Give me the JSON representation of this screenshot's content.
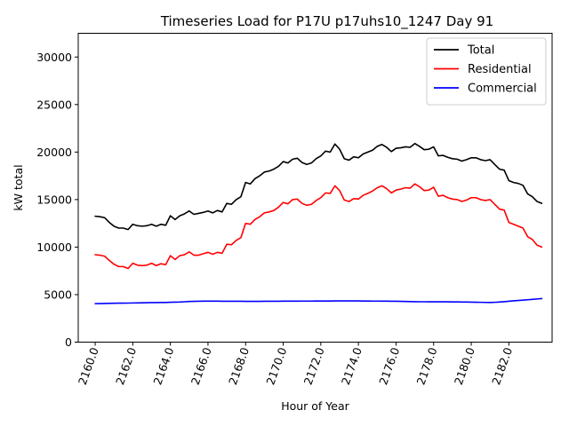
{
  "chart_data": {
    "type": "line",
    "title": "Timeseries Load for P17U p17uhs10_1247  Day 91",
    "xlabel": "Hour of Year",
    "ylabel": "kW total",
    "xlim": [
      2159.1,
      2184.3
    ],
    "ylim": [
      0,
      32500
    ],
    "xticks": [
      2160,
      2162,
      2164,
      2166,
      2168,
      2170,
      2172,
      2174,
      2176,
      2178,
      2180,
      2182
    ],
    "xtick_labels": [
      "2160.0",
      "2162.0",
      "2164.0",
      "2166.0",
      "2168.0",
      "2170.0",
      "2172.0",
      "2174.0",
      "2176.0",
      "2178.0",
      "2180.0",
      "2182.0"
    ],
    "yticks": [
      0,
      5000,
      10000,
      15000,
      20000,
      25000,
      30000
    ],
    "ytick_labels": [
      "0",
      "5000",
      "10000",
      "15000",
      "20000",
      "25000",
      "30000"
    ],
    "legend_position": "top-right",
    "x": [
      2160.0,
      2160.25,
      2160.5,
      2160.75,
      2161.0,
      2161.25,
      2161.5,
      2161.75,
      2162.0,
      2162.25,
      2162.5,
      2162.75,
      2163.0,
      2163.25,
      2163.5,
      2163.75,
      2164.0,
      2164.25,
      2164.5,
      2164.75,
      2165.0,
      2165.25,
      2165.5,
      2165.75,
      2166.0,
      2166.25,
      2166.5,
      2166.75,
      2167.0,
      2167.25,
      2167.5,
      2167.75,
      2168.0,
      2168.25,
      2168.5,
      2168.75,
      2169.0,
      2169.25,
      2169.5,
      2169.75,
      2170.0,
      2170.25,
      2170.5,
      2170.75,
      2171.0,
      2171.25,
      2171.5,
      2171.75,
      2172.0,
      2172.25,
      2172.5,
      2172.75,
      2173.0,
      2173.25,
      2173.5,
      2173.75,
      2174.0,
      2174.25,
      2174.5,
      2174.75,
      2175.0,
      2175.25,
      2175.5,
      2175.75,
      2176.0,
      2176.25,
      2176.5,
      2176.75,
      2177.0,
      2177.25,
      2177.5,
      2177.75,
      2178.0,
      2178.25,
      2178.5,
      2178.75,
      2179.0,
      2179.25,
      2179.5,
      2179.75,
      2180.0,
      2180.25,
      2180.5,
      2180.75,
      2181.0,
      2181.25,
      2181.5,
      2181.75,
      2182.0,
      2182.25,
      2182.5,
      2182.75,
      2183.0,
      2183.25,
      2183.5,
      2183.75
    ],
    "series": [
      {
        "name": "Total",
        "color": "#000000",
        "values": [
          13250,
          13200,
          13100,
          12600,
          12200,
          12000,
          12000,
          11850,
          12400,
          12250,
          12200,
          12250,
          12400,
          12200,
          12400,
          12300,
          13300,
          12900,
          13300,
          13500,
          13800,
          13450,
          13550,
          13650,
          13800,
          13600,
          13850,
          13700,
          14600,
          14500,
          15000,
          15300,
          16800,
          16650,
          17200,
          17500,
          17900,
          18000,
          18200,
          18500,
          19000,
          18850,
          19250,
          19350,
          18900,
          18700,
          18850,
          19300,
          19600,
          20100,
          20000,
          20850,
          20300,
          19300,
          19150,
          19500,
          19400,
          19800,
          20000,
          20200,
          20600,
          20800,
          20500,
          20050,
          20400,
          20450,
          20550,
          20500,
          20900,
          20600,
          20250,
          20300,
          20550,
          19600,
          19650,
          19450,
          19300,
          19250,
          19050,
          19200,
          19400,
          19400,
          19200,
          19100,
          19200,
          18700,
          18200,
          18100,
          17000,
          16800,
          16700,
          16500,
          15600,
          15300,
          14800,
          14600
        ]
      },
      {
        "name": "Residential",
        "color": "#ff0000",
        "values": [
          9200,
          9150,
          9050,
          8600,
          8200,
          7950,
          7950,
          7750,
          8300,
          8100,
          8050,
          8100,
          8300,
          8050,
          8250,
          8150,
          9100,
          8700,
          9100,
          9200,
          9500,
          9150,
          9150,
          9300,
          9450,
          9250,
          9450,
          9350,
          10300,
          10250,
          10700,
          11000,
          12500,
          12400,
          12900,
          13200,
          13600,
          13700,
          13850,
          14200,
          14700,
          14550,
          15000,
          15050,
          14600,
          14400,
          14500,
          14900,
          15200,
          15700,
          15650,
          16450,
          15950,
          14950,
          14800,
          15100,
          15050,
          15450,
          15650,
          15900,
          16250,
          16450,
          16150,
          15700,
          16000,
          16100,
          16250,
          16200,
          16650,
          16350,
          15950,
          16000,
          16300,
          15350,
          15450,
          15200,
          15050,
          15000,
          14800,
          14950,
          15200,
          15200,
          15000,
          14900,
          15000,
          14500,
          14000,
          13900,
          12600,
          12400,
          12200,
          12000,
          11100,
          10800,
          10200,
          10000
        ]
      },
      {
        "name": "Commercial",
        "color": "#0000ff",
        "values": [
          4050,
          4060,
          4070,
          4080,
          4090,
          4100,
          4100,
          4110,
          4120,
          4130,
          4140,
          4150,
          4160,
          4160,
          4170,
          4170,
          4200,
          4210,
          4220,
          4250,
          4280,
          4290,
          4300,
          4310,
          4310,
          4310,
          4310,
          4300,
          4300,
          4300,
          4300,
          4300,
          4290,
          4290,
          4290,
          4290,
          4300,
          4300,
          4300,
          4300,
          4310,
          4310,
          4310,
          4310,
          4320,
          4320,
          4320,
          4330,
          4330,
          4330,
          4330,
          4340,
          4340,
          4340,
          4340,
          4340,
          4340,
          4330,
          4330,
          4320,
          4320,
          4310,
          4310,
          4300,
          4300,
          4290,
          4280,
          4270,
          4260,
          4250,
          4250,
          4240,
          4240,
          4240,
          4240,
          4240,
          4230,
          4230,
          4220,
          4220,
          4210,
          4200,
          4190,
          4180,
          4170,
          4190,
          4220,
          4260,
          4300,
          4350,
          4380,
          4420,
          4460,
          4500,
          4540,
          4580
        ]
      }
    ]
  }
}
